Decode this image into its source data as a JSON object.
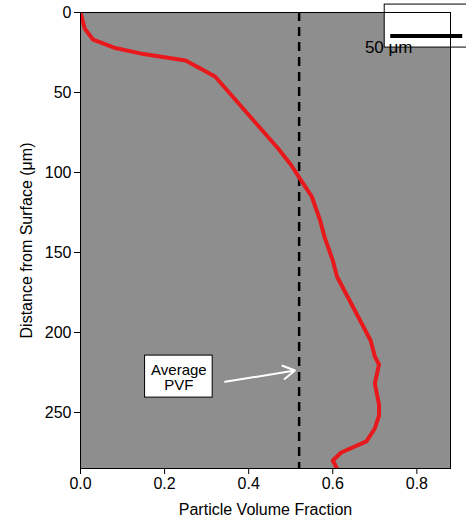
{
  "chart_data": {
    "type": "line",
    "x_label": "Particle Volume Fraction",
    "y_label": "Distance from Surface (μm)",
    "x": [
      0.0,
      0.01,
      0.03,
      0.08,
      0.15,
      0.25,
      0.32,
      0.37,
      0.42,
      0.47,
      0.5,
      0.52,
      0.55,
      0.57,
      0.58,
      0.6,
      0.61,
      0.63,
      0.65,
      0.67,
      0.69,
      0.7,
      0.71,
      0.7,
      0.71,
      0.71,
      0.7,
      0.68,
      0.62,
      0.6,
      0.61
    ],
    "values": [
      0,
      10,
      17,
      22,
      26,
      30,
      40,
      55,
      70,
      85,
      95,
      103,
      115,
      130,
      140,
      155,
      165,
      175,
      185,
      195,
      205,
      215,
      220,
      232,
      245,
      252,
      260,
      268,
      275,
      280,
      285
    ],
    "color": "#e8191c",
    "line_style": "solid",
    "xlim": [
      0,
      0.88
    ],
    "xticks": [
      {
        "value": 0,
        "label": "0.0"
      },
      0.2,
      0.4,
      0.6,
      0.8
    ],
    "ylim": [
      0,
      285
    ],
    "yticks": [
      0,
      50,
      100,
      150,
      200,
      250
    ],
    "reference_line": {
      "value": 0.52,
      "label": "Average PVF",
      "color": "#000000",
      "line_style": "dashed"
    },
    "scale_bar": {
      "label": "50 μm"
    }
  }
}
